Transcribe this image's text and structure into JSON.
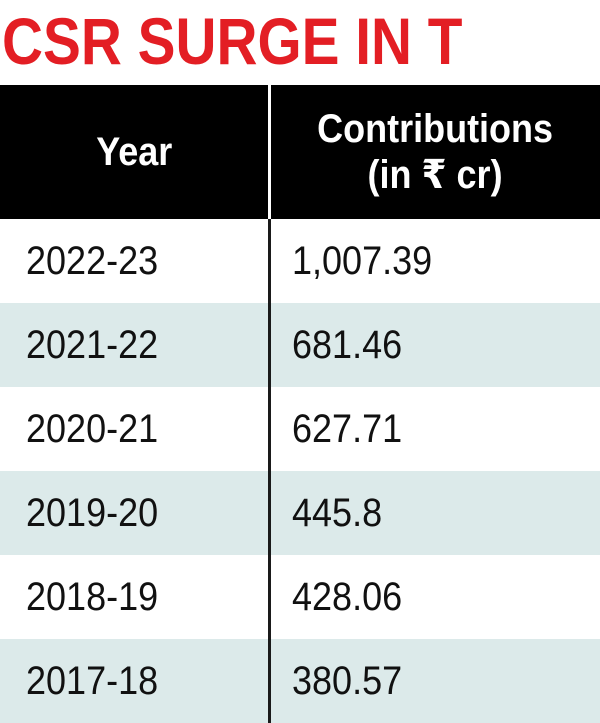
{
  "title": "CSR SURGE IN T",
  "colors": {
    "title": "#e31e24",
    "header_bg": "#000000",
    "header_text": "#ffffff",
    "alt_row_bg": "#dceaea"
  },
  "chart_data": {
    "type": "table",
    "title": "CSR SURGE IN T",
    "columns": [
      "Year",
      "Contributions (in ₹ cr)"
    ],
    "header": {
      "year": "Year",
      "contrib_line1": "Contributions",
      "contrib_line2": "(in ₹ cr)"
    },
    "rows": [
      {
        "year": "2022-23",
        "value": "1,007.39"
      },
      {
        "year": "2021-22",
        "value": "681.46"
      },
      {
        "year": "2020-21",
        "value": "627.71"
      },
      {
        "year": "2019-20",
        "value": "445.8"
      },
      {
        "year": "2018-19",
        "value": "428.06"
      },
      {
        "year": "2017-18",
        "value": "380.57"
      }
    ]
  }
}
